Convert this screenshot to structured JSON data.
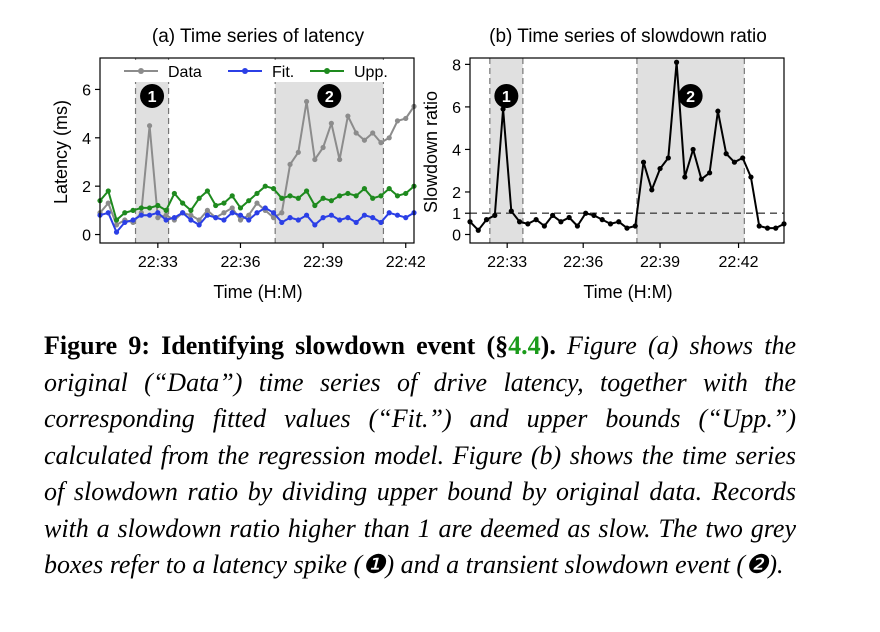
{
  "colors": {
    "data": "#8c8c8c",
    "fit": "#2b3fe6",
    "upp": "#1e8a1e",
    "ratio": "#000000",
    "shade": "#e0e0e0",
    "caption_ref": "#1a9b1a"
  },
  "chart_data": [
    {
      "type": "line",
      "title": "(a) Time series of latency",
      "xlabel": "Time (H:M)",
      "ylabel": "Latency (ms)",
      "xlim": [
        0,
        38
      ],
      "ylim": [
        -0.35,
        7.3
      ],
      "xticks": [
        {
          "x": 7,
          "label": "22:33"
        },
        {
          "x": 17,
          "label": "22:36"
        },
        {
          "x": 27,
          "label": "22:39"
        },
        {
          "x": 37,
          "label": "22:42"
        }
      ],
      "yticks": [
        0,
        2,
        4,
        6
      ],
      "legend": "top",
      "shaded_regions": [
        {
          "x0": 4.3,
          "x1": 8.3,
          "label": "❶"
        },
        {
          "x0": 21.2,
          "x1": 34.3,
          "label": "❷"
        }
      ],
      "x": [
        0,
        1,
        2,
        3,
        4,
        5,
        6,
        7,
        8,
        9,
        10,
        11,
        12,
        13,
        14,
        15,
        16,
        17,
        18,
        19,
        20,
        21,
        22,
        23,
        24,
        25,
        26,
        27,
        28,
        29,
        30,
        31,
        32,
        33,
        34,
        35,
        36,
        37,
        38
      ],
      "series": [
        {
          "name": "Data",
          "values": [
            0.9,
            1.3,
            0.4,
            0.6,
            0.5,
            0.9,
            4.5,
            0.7,
            0.8,
            0.6,
            0.9,
            0.8,
            0.6,
            1.0,
            0.7,
            0.9,
            1.1,
            0.6,
            0.8,
            1.3,
            1.0,
            0.7,
            0.9,
            2.9,
            3.4,
            5.5,
            3.1,
            3.6,
            4.6,
            3.1,
            4.9,
            4.2,
            3.9,
            4.2,
            3.8,
            4.0,
            4.7,
            4.8,
            5.3
          ]
        },
        {
          "name": "Fit.",
          "values": [
            0.8,
            0.9,
            0.1,
            0.5,
            0.6,
            0.8,
            0.8,
            0.9,
            0.6,
            0.7,
            0.9,
            0.6,
            0.4,
            0.8,
            0.7,
            0.6,
            0.9,
            0.8,
            0.6,
            0.9,
            1.1,
            0.9,
            0.5,
            0.7,
            0.6,
            0.8,
            0.4,
            0.7,
            0.8,
            0.6,
            0.7,
            0.5,
            0.8,
            0.7,
            0.5,
            0.9,
            0.8,
            0.7,
            0.9
          ]
        },
        {
          "name": "Upp.",
          "values": [
            1.4,
            1.8,
            0.6,
            0.9,
            1.0,
            1.1,
            1.1,
            1.2,
            1.0,
            1.7,
            1.3,
            1.0,
            1.5,
            1.8,
            1.2,
            1.3,
            1.6,
            1.1,
            1.4,
            1.7,
            2.0,
            1.9,
            1.5,
            1.6,
            1.5,
            1.8,
            1.2,
            1.5,
            1.4,
            1.6,
            1.7,
            1.6,
            1.9,
            1.5,
            1.6,
            1.9,
            1.6,
            1.7,
            2.0
          ]
        }
      ]
    },
    {
      "type": "line",
      "title": "(b) Time series of slowdown ratio",
      "xlabel": "Time (H:M)",
      "ylabel": "Slowdown ratio",
      "xlim": [
        0,
        38
      ],
      "ylim": [
        -0.4,
        8.3
      ],
      "xticks": [
        {
          "x": 4.5,
          "label": "22:33"
        },
        {
          "x": 13.7,
          "label": "22:36"
        },
        {
          "x": 23,
          "label": "22:39"
        },
        {
          "x": 32.5,
          "label": "22:42"
        }
      ],
      "yticks": [
        0,
        1,
        2,
        4,
        6,
        8
      ],
      "threshold": 1,
      "shaded_regions": [
        {
          "x0": 2.4,
          "x1": 6.4,
          "label": "❶"
        },
        {
          "x0": 20.2,
          "x1": 33.2,
          "label": "❷"
        }
      ],
      "x": [
        0,
        1,
        2,
        3,
        4,
        5,
        6,
        7,
        8,
        9,
        10,
        11,
        12,
        13,
        14,
        15,
        16,
        17,
        18,
        19,
        20,
        21,
        22,
        23,
        24,
        25,
        26,
        27,
        28,
        29,
        30,
        31,
        32,
        33,
        34,
        35,
        36,
        37,
        38
      ],
      "values": [
        0.6,
        0.2,
        0.7,
        0.9,
        5.9,
        1.1,
        0.6,
        0.5,
        0.7,
        0.4,
        0.9,
        0.6,
        0.8,
        0.4,
        1.0,
        0.9,
        0.7,
        0.5,
        0.6,
        0.3,
        0.4,
        3.4,
        2.1,
        3.1,
        3.6,
        8.1,
        2.7,
        4.0,
        2.6,
        2.9,
        5.8,
        3.8,
        3.4,
        3.6,
        2.7,
        0.4,
        0.3,
        0.3,
        0.5
      ]
    }
  ],
  "caption": {
    "lead_text": "Figure 9: Identifying slowdown event (§",
    "lead_ref": "4.4",
    "lead_close": ").",
    "body": " Figure (a) shows the original (“Data”) time series of drive latency, together with the corresponding fitted values (“Fit.”) and upper bounds (“Upp.”) calculated from the regression model. Figure (b) shows the time series of slowdown ratio by dividing upper bound by original data. Records with a slowdown ratio higher than 1 are deemed as slow. The two grey boxes refer to a latency spike (❶) and a transient slowdown event (❷)."
  }
}
